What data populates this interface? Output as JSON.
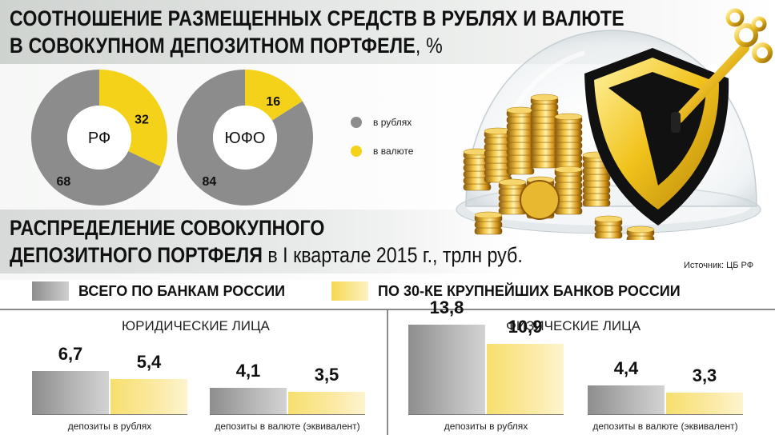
{
  "title_top": {
    "line1": "СООТНОШЕНИЕ РАЗМЕЩЕННЫХ СРЕДСТВ В РУБЛЯХ И ВАЛЮТЕ",
    "line2_bold": "В СОВОКУПНОМ ДЕПОЗИТНОМ ПОРТФЕЛЕ",
    "line2_normal": ", %"
  },
  "donut_legend": {
    "rub_label": "в рублях",
    "fx_label": "в валюте",
    "rub_color": "#8c8c8c",
    "fx_color": "#f4d21a"
  },
  "title_bottom": {
    "line1": "РАСПРЕДЕЛЕНИЕ СОВОКУПНОГО",
    "line2_bold": "ДЕПОЗИТНОГО ПОРТФЕЛЯ",
    "line2_normal": " в I квартале 2015 г., трлн руб."
  },
  "source": "Источник: ЦБ РФ",
  "bar_legend": {
    "all_banks": "ВСЕГО ПО БАНКАМ РОССИИ",
    "top30": "ПО 30-КЕ КРУПНЕЙШИХ БАНКОВ РОССИИ"
  },
  "chart_data": [
    {
      "type": "pie",
      "center_label": "РФ",
      "slices": [
        {
          "name": "в рублях",
          "value": 68
        },
        {
          "name": "в валюте",
          "value": 32
        }
      ]
    },
    {
      "type": "pie",
      "center_label": "ЮФО",
      "slices": [
        {
          "name": "в рублях",
          "value": 84
        },
        {
          "name": "в валюте",
          "value": 16
        }
      ]
    },
    {
      "type": "bar",
      "title": "ЮРИДИЧЕСКИЕ ЛИЦА",
      "categories": [
        "депозиты в рублях",
        "депозиты в валюте (эквивалент)"
      ],
      "series": [
        {
          "name": "ВСЕГО ПО БАНКАМ РОССИИ",
          "values": [
            "6,7",
            "4,1"
          ],
          "numeric": [
            6.7,
            4.1
          ]
        },
        {
          "name": "ПО 30-КЕ КРУПНЕЙШИХ БАНКОВ РОССИИ",
          "values": [
            "5,4",
            "3,5"
          ],
          "numeric": [
            5.4,
            3.5
          ]
        }
      ]
    },
    {
      "type": "bar",
      "title": "ФИЗИЧЕСКИЕ ЛИЦА",
      "categories": [
        "депозиты в рублях",
        "депозиты в валюте (эквивалент)"
      ],
      "series": [
        {
          "name": "ВСЕГО ПО БАНКАМ РОССИИ",
          "values": [
            "13,8",
            "4,4"
          ],
          "numeric": [
            13.8,
            4.4
          ]
        },
        {
          "name": "ПО 30-КЕ КРУПНЕЙШИХ БАНКОВ РОССИИ",
          "values": [
            "10,9",
            "3,3"
          ],
          "numeric": [
            10.9,
            3.3
          ]
        }
      ]
    }
  ]
}
